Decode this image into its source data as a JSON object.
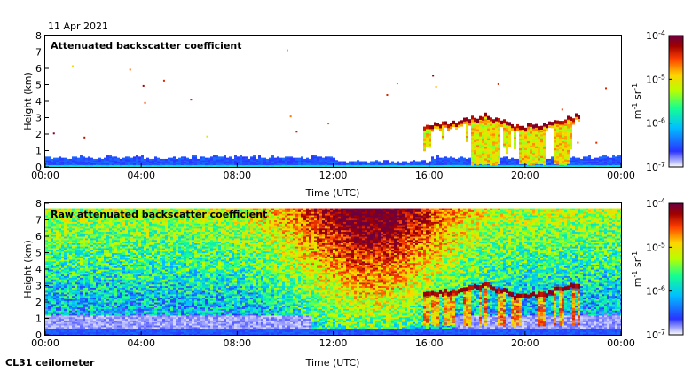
{
  "header": {
    "date": "11 Apr 2021"
  },
  "footer": {
    "instrument": "CL31 ceilometer"
  },
  "colors": {
    "colormap": [
      "#ffffff",
      "#2a33ff",
      "#00c0ff",
      "#16ff90",
      "#b8ff00",
      "#ffd400",
      "#ff4000",
      "#a00000",
      "#6a0040"
    ]
  },
  "chart_data": [
    {
      "type": "heatmap",
      "title": "Attenuated backscatter coefficient",
      "xlabel": "Time (UTC)",
      "ylabel": "Height (km)",
      "x_ticks": [
        "00:00",
        "04:00",
        "08:00",
        "12:00",
        "16:00",
        "20:00",
        "00:00"
      ],
      "y_ticks": [
        "0",
        "1",
        "2",
        "3",
        "4",
        "5",
        "6",
        "7",
        "8"
      ],
      "xlim_hours": [
        0,
        24
      ],
      "ylim_km": [
        0,
        8
      ],
      "colorbar": {
        "ticks": [
          "10-7",
          "10-6",
          "10-5",
          "10-4"
        ],
        "label": "m-1 sr-1",
        "range_log10": [
          -7,
          -4
        ]
      },
      "features": {
        "boundary_layer_top_km": 0.55,
        "cloud_layer": {
          "start_hour": 15.7,
          "end_hour": 22.2,
          "base_km": [
            2.4,
            2.6,
            3.0,
            2.3,
            2.5,
            3.0
          ]
        },
        "precip_streaks_hours": [
          18.1,
          18.6,
          20.0,
          20.5,
          21.5
        ]
      }
    },
    {
      "type": "heatmap",
      "title": "Raw attenuated backscatter coefficient",
      "xlabel": "Time (UTC)",
      "ylabel": "Height (km)",
      "x_ticks": [
        "00:00",
        "04:00",
        "08:00",
        "12:00",
        "16:00",
        "20:00",
        "00:00"
      ],
      "y_ticks": [
        "0",
        "1",
        "2",
        "3",
        "4",
        "5",
        "6",
        "7",
        "8"
      ],
      "xlim_hours": [
        0,
        24
      ],
      "ylim_km": [
        0,
        8
      ],
      "colorbar": {
        "ticks": [
          "10-7",
          "10-6",
          "10-5",
          "10-4"
        ],
        "label": "m-1 sr-1",
        "range_log10": [
          -7,
          -4
        ]
      },
      "features": {
        "noise_peak_hour": 13.5,
        "cloud_layer": {
          "start_hour": 15.7,
          "end_hour": 22.2,
          "base_km": [
            2.4,
            2.6,
            3.0,
            2.3,
            2.5,
            3.0
          ]
        }
      }
    }
  ]
}
